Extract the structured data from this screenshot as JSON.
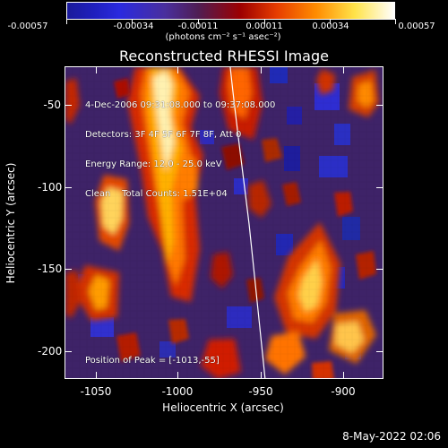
{
  "colorbar": {
    "labels": [
      "-0.00057",
      "-0.00034",
      "-0.00011",
      "0.00011",
      "0.00034",
      "0.00057"
    ],
    "unit": "(photons cm⁻² s⁻¹ asec⁻²)"
  },
  "plot": {
    "title": "Reconstructed RHESSI Image",
    "info_lines": [
      "4-Dec-2006 09:31:08.000 to 09:37:08.000",
      "Detectors: 3F 4F 5F 6F 7F 8F, Att 0",
      "Energy Range: 12.0 - 25.0 keV",
      "Clean    Total Counts: 1.51E+04"
    ],
    "peak": "Position of Peak = [-1013,-55]",
    "x_label": "Heliocentric X (arcsec)",
    "y_label": "Heliocentric Y (arcsec)",
    "x_ticks": [
      "-1050",
      "-1000",
      "-950",
      "-900"
    ],
    "y_ticks": [
      "-50",
      "-100",
      "-150",
      "-200"
    ]
  },
  "footer": {
    "date": "8-May-2022 02:06"
  },
  "colors": {
    "background": "#000000",
    "foreground": "#ffffff",
    "limb_line": "#ffffff"
  }
}
